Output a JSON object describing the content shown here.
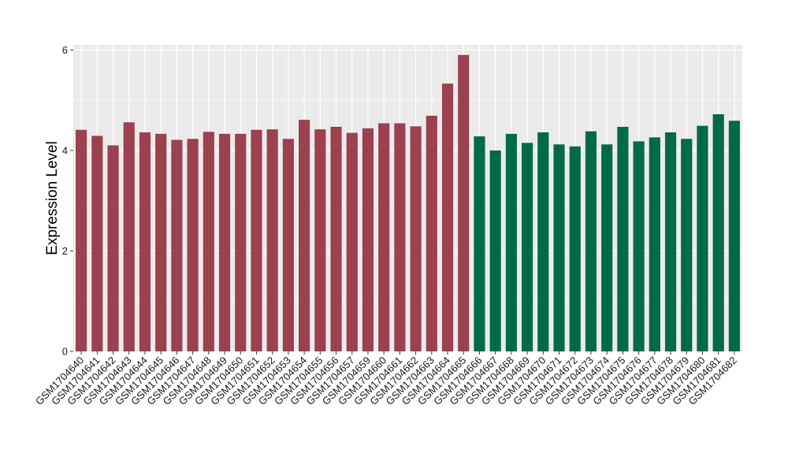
{
  "chart_data": {
    "type": "bar",
    "title": "",
    "xlabel": "",
    "ylabel": "Expression Level",
    "ylim": [
      0,
      6.1
    ],
    "yticks": [
      0,
      2,
      4,
      6
    ],
    "grid": true,
    "legend": "none",
    "panel_background": "#EBEBEB",
    "grid_color": "#FFFFFF",
    "colors": {
      "group_a": "#9B4150",
      "group_b": "#006B45"
    },
    "categories": [
      "GSM1704640",
      "GSM1704641",
      "GSM1704642",
      "GSM1704643",
      "GSM1704644",
      "GSM1704645",
      "GSM1704646",
      "GSM1704647",
      "GSM1704648",
      "GSM1704649",
      "GSM1704650",
      "GSM1704651",
      "GSM1704652",
      "GSM1704653",
      "GSM1704654",
      "GSM1704655",
      "GSM1704656",
      "GSM1704657",
      "GSM1704659",
      "GSM1704660",
      "GSM1704661",
      "GSM1704662",
      "GSM1704663",
      "GSM1704664",
      "GSM1704665",
      "GSM1704666",
      "GSM1704667",
      "GSM1704668",
      "GSM1704669",
      "GSM1704670",
      "GSM1704671",
      "GSM1704672",
      "GSM1704673",
      "GSM1704674",
      "GSM1704675",
      "GSM1704676",
      "GSM1704677",
      "GSM1704678",
      "GSM1704679",
      "GSM1704680",
      "GSM1704681",
      "GSM1704682"
    ],
    "values": [
      4.41,
      4.29,
      4.1,
      4.56,
      4.36,
      4.33,
      4.21,
      4.23,
      4.37,
      4.33,
      4.33,
      4.41,
      4.42,
      4.23,
      4.61,
      4.42,
      4.47,
      4.35,
      4.44,
      4.54,
      4.54,
      4.48,
      4.69,
      5.33,
      5.9,
      4.28,
      4.0,
      4.33,
      4.15,
      4.36,
      4.12,
      4.08,
      4.38,
      4.12,
      4.47,
      4.18,
      4.26,
      4.36,
      4.23,
      4.49,
      4.72,
      4.59
    ],
    "groups": [
      "group_a",
      "group_a",
      "group_a",
      "group_a",
      "group_a",
      "group_a",
      "group_a",
      "group_a",
      "group_a",
      "group_a",
      "group_a",
      "group_a",
      "group_a",
      "group_a",
      "group_a",
      "group_a",
      "group_a",
      "group_a",
      "group_a",
      "group_a",
      "group_a",
      "group_a",
      "group_a",
      "group_a",
      "group_a",
      "group_b",
      "group_b",
      "group_b",
      "group_b",
      "group_b",
      "group_b",
      "group_b",
      "group_b",
      "group_b",
      "group_b",
      "group_b",
      "group_b",
      "group_b",
      "group_b",
      "group_b",
      "group_b",
      "group_b"
    ]
  }
}
